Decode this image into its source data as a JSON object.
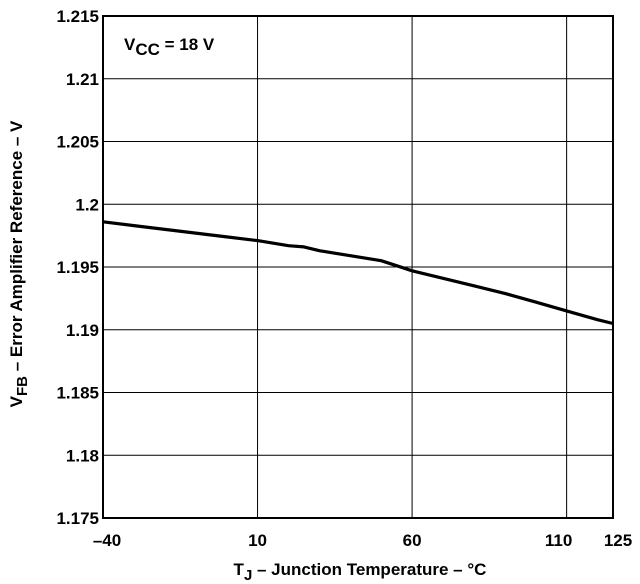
{
  "chart_data": {
    "type": "line",
    "xlabel_main": "T",
    "xlabel_sub": "J",
    "xlabel_rest": " – Junction Temperature – °C",
    "ylabel_main": "V",
    "ylabel_sub": "FB",
    "ylabel_rest": " –  Error Amplifier Reference – V",
    "annotation_main": "V",
    "annotation_sub": "CC",
    "annotation_rest": " = 18 V",
    "xlim": [
      -40,
      125
    ],
    "ylim": [
      1.175,
      1.215
    ],
    "x_gridlines": [
      10,
      60,
      110
    ],
    "y_ticks": [
      1.175,
      1.18,
      1.185,
      1.19,
      1.195,
      1.2,
      1.205,
      1.21,
      1.215
    ],
    "y_tick_labels": [
      "1.175",
      "1.18",
      "1.185",
      "1.19",
      "1.195",
      "1.2",
      "1.205",
      "1.21",
      "1.215"
    ],
    "x_ticks": [
      -40,
      10,
      60,
      110,
      125
    ],
    "x_tick_labels": [
      "–40",
      "10",
      "60",
      "110",
      "125"
    ],
    "grid": true,
    "series": [
      {
        "x": [
          -40,
          -30,
          -20,
          -10,
          0,
          10,
          20,
          25,
          30,
          40,
          50,
          55,
          60,
          70,
          80,
          90,
          100,
          110,
          120,
          125
        ],
        "y": [
          1.1986,
          1.1983,
          1.198,
          1.1977,
          1.1974,
          1.1971,
          1.1967,
          1.1966,
          1.1963,
          1.1959,
          1.1955,
          1.1951,
          1.1947,
          1.1941,
          1.1935,
          1.1929,
          1.1922,
          1.1915,
          1.1908,
          1.1905
        ]
      }
    ],
    "colors": {
      "line": "#000000",
      "grid": "#000000",
      "background": "#ffffff"
    }
  }
}
